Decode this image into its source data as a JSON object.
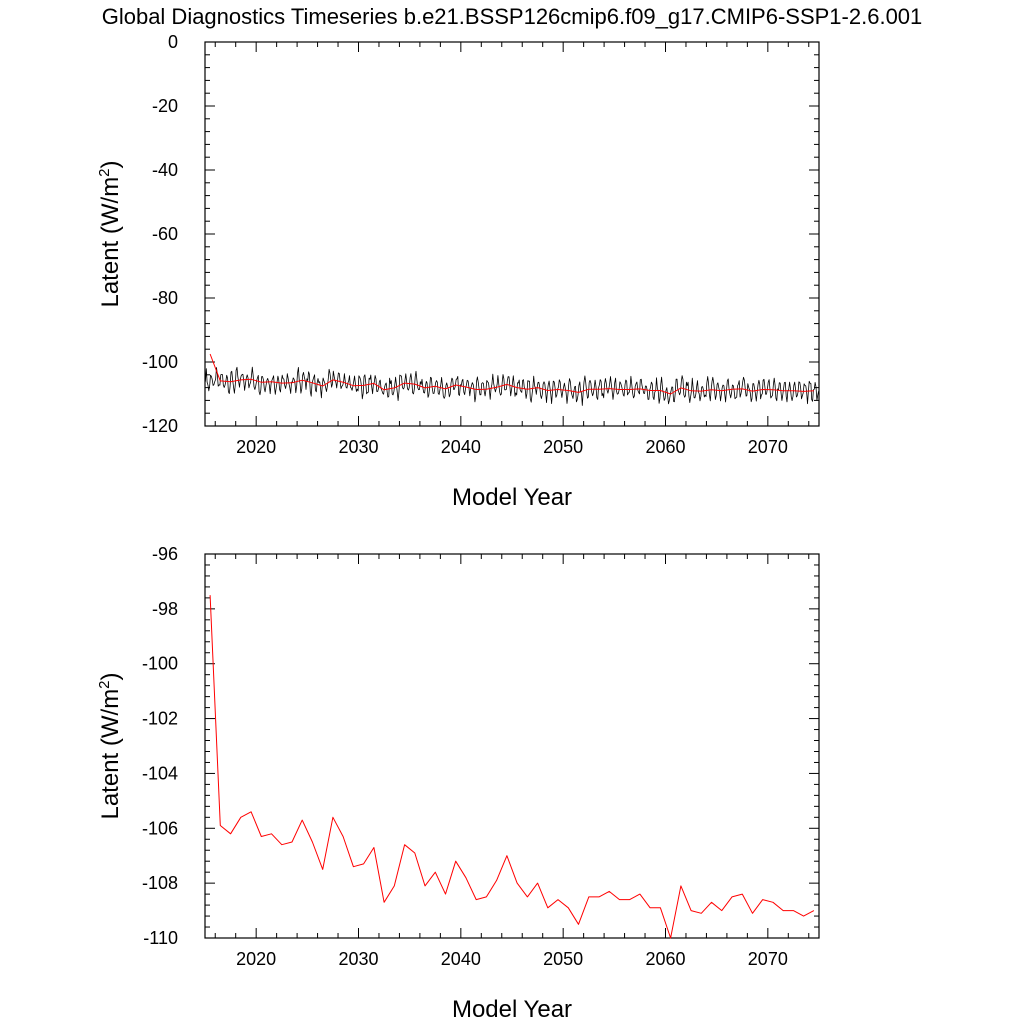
{
  "title": "Global Diagnostics Timeseries b.e21.BSSP126cmip6.f09_g17.CMIP6-SSP1-2.6.001",
  "colors": {
    "monthly": "#000000",
    "annual": "#ff0000",
    "axes": "#000000"
  },
  "chart_data": [
    {
      "type": "line",
      "xlabel": "Model Year",
      "ylabel": "Latent (W/m",
      "ylabel_sup": "2",
      "ylabel_close": ")",
      "xlim": [
        2015,
        2075
      ],
      "ylim": [
        -120,
        0
      ],
      "xticks": [
        2020,
        2030,
        2040,
        2050,
        2060,
        2070
      ],
      "xtick_labels": [
        "2020",
        "2030",
        "2040",
        "2050",
        "2060",
        "2070"
      ],
      "yticks": [
        0,
        -20,
        -40,
        -60,
        -80,
        -100,
        -120
      ],
      "ytick_labels": [
        "0",
        "-20",
        "-40",
        "-60",
        "-80",
        "-100",
        "-120"
      ],
      "series": [
        {
          "style": "monthly",
          "x_start": 2015.04,
          "x_step": 0.0833333,
          "base_values": [
            -97.5,
            -105.9,
            -106.2,
            -105.6,
            -105.4,
            -106.3,
            -106.2,
            -106.6,
            -106.5,
            -105.7,
            -106.5,
            -107.5,
            -105.6,
            -106.3,
            -107.4,
            -107.3,
            -106.7,
            -108.7,
            -108.1,
            -106.6,
            -106.9,
            -108.1,
            -107.6,
            -108.4,
            -107.2,
            -107.8,
            -108.6,
            -108.5,
            -107.9,
            -107.0,
            -108.0,
            -108.5,
            -108.0,
            -108.9,
            -108.6,
            -108.9,
            -109.5,
            -108.5,
            -108.5,
            -108.3,
            -108.6,
            -108.6,
            -108.4,
            -108.9,
            -108.9,
            -110.0,
            -108.1,
            -109.0,
            -109.1,
            -108.7,
            -109.0,
            -108.5,
            -108.4,
            -109.1,
            -108.6,
            -108.7,
            -109.0,
            -109.0,
            -109.2,
            -109.0
          ],
          "seasonal_amplitude": 2.6
        },
        {
          "style": "annual",
          "x": [
            2015.5,
            2016.5,
            2017.5,
            2018.5,
            2019.5,
            2020.5,
            2021.5,
            2022.5,
            2023.5,
            2024.5,
            2025.5,
            2026.5,
            2027.5,
            2028.5,
            2029.5,
            2030.5,
            2031.5,
            2032.5,
            2033.5,
            2034.5,
            2035.5,
            2036.5,
            2037.5,
            2038.5,
            2039.5,
            2040.5,
            2041.5,
            2042.5,
            2043.5,
            2044.5,
            2045.5,
            2046.5,
            2047.5,
            2048.5,
            2049.5,
            2050.5,
            2051.5,
            2052.5,
            2053.5,
            2054.5,
            2055.5,
            2056.5,
            2057.5,
            2058.5,
            2059.5,
            2060.5,
            2061.5,
            2062.5,
            2063.5,
            2064.5,
            2065.5,
            2066.5,
            2067.5,
            2068.5,
            2069.5,
            2070.5,
            2071.5,
            2072.5,
            2073.5,
            2074.5
          ],
          "y": [
            -97.5,
            -105.9,
            -106.2,
            -105.6,
            -105.4,
            -106.3,
            -106.2,
            -106.6,
            -106.5,
            -105.7,
            -106.5,
            -107.5,
            -105.6,
            -106.3,
            -107.4,
            -107.3,
            -106.7,
            -108.7,
            -108.1,
            -106.6,
            -106.9,
            -108.1,
            -107.6,
            -108.4,
            -107.2,
            -107.8,
            -108.6,
            -108.5,
            -107.9,
            -107.0,
            -108.0,
            -108.5,
            -108.0,
            -108.9,
            -108.6,
            -108.9,
            -109.5,
            -108.5,
            -108.5,
            -108.3,
            -108.6,
            -108.6,
            -108.4,
            -108.9,
            -108.9,
            -110.0,
            -108.1,
            -109.0,
            -109.1,
            -108.7,
            -109.0,
            -108.5,
            -108.4,
            -109.1,
            -108.6,
            -108.7,
            -109.0,
            -109.0,
            -109.2,
            -109.0
          ]
        }
      ]
    },
    {
      "type": "line",
      "xlabel": "Model Year",
      "ylabel": "Latent (W/m",
      "ylabel_sup": "2",
      "ylabel_close": ")",
      "xlim": [
        2015,
        2075
      ],
      "ylim": [
        -110,
        -96
      ],
      "xticks": [
        2020,
        2030,
        2040,
        2050,
        2060,
        2070
      ],
      "xtick_labels": [
        "2020",
        "2030",
        "2040",
        "2050",
        "2060",
        "2070"
      ],
      "yticks": [
        -96,
        -98,
        -100,
        -102,
        -104,
        -106,
        -108,
        -110
      ],
      "ytick_labels": [
        "-96",
        "-98",
        "-100",
        "-102",
        "-104",
        "-106",
        "-108",
        "-110"
      ],
      "series": [
        {
          "style": "annual",
          "x": [
            2015.5,
            2016.5,
            2017.5,
            2018.5,
            2019.5,
            2020.5,
            2021.5,
            2022.5,
            2023.5,
            2024.5,
            2025.5,
            2026.5,
            2027.5,
            2028.5,
            2029.5,
            2030.5,
            2031.5,
            2032.5,
            2033.5,
            2034.5,
            2035.5,
            2036.5,
            2037.5,
            2038.5,
            2039.5,
            2040.5,
            2041.5,
            2042.5,
            2043.5,
            2044.5,
            2045.5,
            2046.5,
            2047.5,
            2048.5,
            2049.5,
            2050.5,
            2051.5,
            2052.5,
            2053.5,
            2054.5,
            2055.5,
            2056.5,
            2057.5,
            2058.5,
            2059.5,
            2060.5,
            2061.5,
            2062.5,
            2063.5,
            2064.5,
            2065.5,
            2066.5,
            2067.5,
            2068.5,
            2069.5,
            2070.5,
            2071.5,
            2072.5,
            2073.5,
            2074.5
          ],
          "y": [
            -97.5,
            -105.9,
            -106.2,
            -105.6,
            -105.4,
            -106.3,
            -106.2,
            -106.6,
            -106.5,
            -105.7,
            -106.5,
            -107.5,
            -105.6,
            -106.3,
            -107.4,
            -107.3,
            -106.7,
            -108.7,
            -108.1,
            -106.6,
            -106.9,
            -108.1,
            -107.6,
            -108.4,
            -107.2,
            -107.8,
            -108.6,
            -108.5,
            -107.9,
            -107.0,
            -108.0,
            -108.5,
            -108.0,
            -108.9,
            -108.6,
            -108.9,
            -109.5,
            -108.5,
            -108.5,
            -108.3,
            -108.6,
            -108.6,
            -108.4,
            -108.9,
            -108.9,
            -110.0,
            -108.1,
            -109.0,
            -109.1,
            -108.7,
            -109.0,
            -108.5,
            -108.4,
            -109.1,
            -108.6,
            -108.7,
            -109.0,
            -109.0,
            -109.2,
            -109.0
          ]
        }
      ]
    }
  ]
}
